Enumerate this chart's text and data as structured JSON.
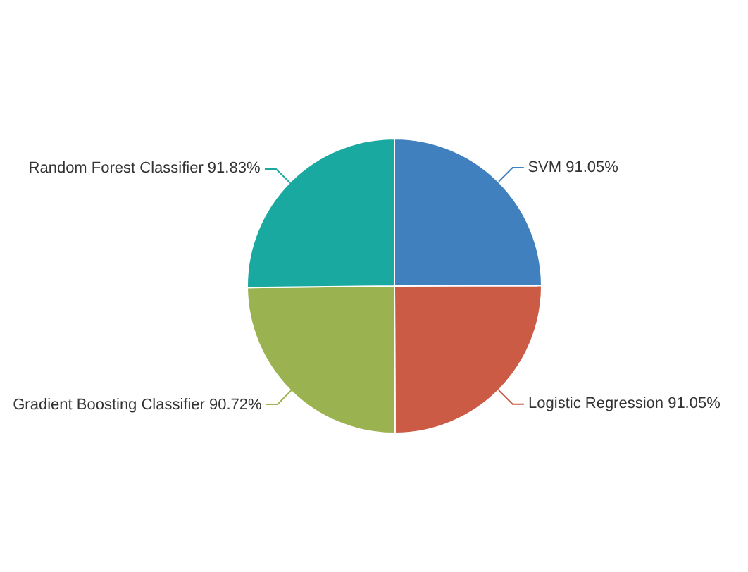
{
  "chart_data": {
    "type": "pie",
    "categories": [
      "SVM 91.05%",
      "Logistic Regression 91.05%",
      "Gradient Boosting Classifier 90.72%",
      "Random Forest Classifier 91.83%"
    ],
    "values": [
      24.97,
      24.97,
      24.88,
      25.18
    ],
    "colors": [
      "#4080bf",
      "#cc5b45",
      "#9bb250",
      "#1aa9a1"
    ],
    "legend": false
  }
}
